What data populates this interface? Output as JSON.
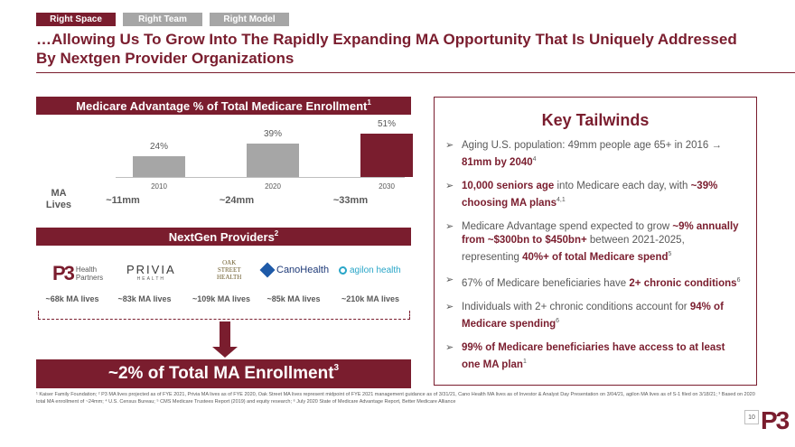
{
  "tabs": [
    {
      "label": "Right Space",
      "active": true
    },
    {
      "label": "Right Team",
      "active": false
    },
    {
      "label": "Right Model",
      "active": false
    }
  ],
  "title": "…Allowing Us To Grow Into The Rapidly Expanding MA Opportunity That Is Uniquely Addressed By Nextgen Provider Organizations",
  "chart_section": {
    "header": "Medicare Advantage % of Total Medicare Enrollment",
    "header_sup": "1"
  },
  "chart_data": {
    "type": "bar",
    "title": "Medicare Advantage % of Total Medicare Enrollment",
    "categories": [
      "2010",
      "2020",
      "2030"
    ],
    "values": [
      24,
      39,
      51
    ],
    "labels": [
      "24%",
      "39%",
      "51%"
    ],
    "ylim": [
      0,
      55
    ],
    "highlight_color": "#7a1d2e",
    "base_color": "#a6a6a6"
  },
  "ma_lives": {
    "label_line1": "MA",
    "label_line2": "Lives",
    "values": [
      "~11mm",
      "~24mm",
      "~33mm"
    ]
  },
  "providers": {
    "header": "NextGen Providers",
    "header_sup": "2",
    "logos": [
      {
        "name": "P3 Health Partners",
        "mark": "P3",
        "line1": "Health",
        "line2": "Partners"
      },
      {
        "name": "PRIVIA",
        "mark": "PRIVIA",
        "sub": "HEALTH"
      },
      {
        "name": "Oak Street Health",
        "line1": "OAK",
        "line2": "STREET",
        "line3": "HEALTH"
      },
      {
        "name": "CanoHealth",
        "mark": "CanoHealth"
      },
      {
        "name": "agilon health",
        "mark": "agilon health"
      }
    ],
    "lives": [
      "~68k MA lives",
      "~83k MA lives",
      "~109k MA lives",
      "~85k MA lives",
      "~210k MA lives"
    ]
  },
  "total": {
    "text": "~2% of Total MA Enrollment",
    "sup": "3"
  },
  "tailwinds": {
    "title": "Key Tailwinds",
    "items": [
      {
        "pre": "Aging U.S. population: 49mm people age 65+ in 2016 → ",
        "bold": "81mm by 2040",
        "sup": "4",
        "post": ""
      },
      {
        "pre": "",
        "bold": "10,000 seniors age",
        "mid": " into Medicare each day, with ",
        "bold2": "~39% choosing MA plans",
        "sup": "4,1"
      },
      {
        "pre": "Medicare Advantage spend expected to grow ",
        "bold": "~9% annually from ~$300bn to $450bn+",
        "mid": " between 2021-2025, representing ",
        "bold2": "40%+ of total Medicare spend",
        "sup": "5"
      },
      {
        "pre": "67% of Medicare beneficiaries have ",
        "bold": "2+ chronic conditions",
        "sup": "6"
      },
      {
        "pre": "Individuals with 2+ chronic conditions account for ",
        "bold": "94% of Medicare spending",
        "sup": "6"
      },
      {
        "pre": "",
        "bold": "99% of Medicare beneficiaries have access to at least one MA plan",
        "sup": "1"
      }
    ]
  },
  "footnote": "¹ Kaiser Family Foundation; ² P3 MA lives projected as of FYE 2021, Privia MA lives as of FYE 2020, Oak Street MA lives represent midpoint of FYE 2021 management guidance as of 3/31/21, Cano Health MA lives as of Investor & Analyst Day Presentation on 3/04/21, agilon MA lives as of S-1 filed on 3/18/21; ³ Based on 2020 total MA enrollment of ~24mm; ⁴ U.S. Census Bureau; ⁵ CMS Medicare Trustees Report (2019) and equity research; ⁶ July 2020 State of Medicare Advantage Report, Better Medicare Alliance",
  "page_number": "10",
  "footer_logo": "P3"
}
